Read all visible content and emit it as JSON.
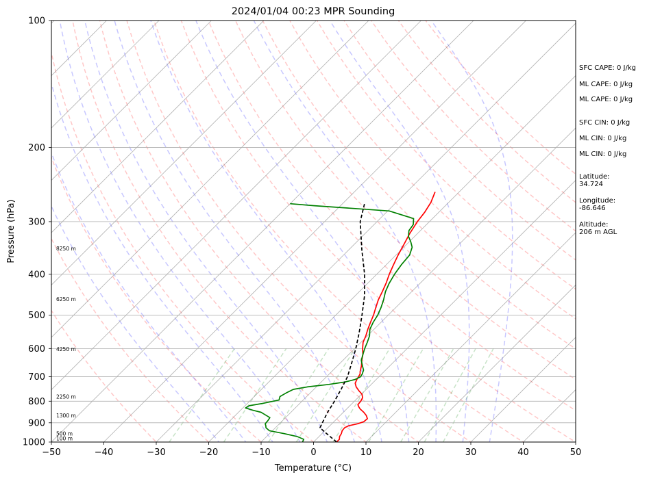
{
  "chart_data": {
    "type": "line",
    "chart_kind": "skew-T log-P sounding",
    "title": "2024/01/04 00:23 MPR Sounding",
    "xlabel": "Temperature (°C)",
    "ylabel": "Pressure (hPa)",
    "xlim": [
      -50,
      50
    ],
    "ylim": [
      1000,
      100
    ],
    "y_scale": "log",
    "x_ticks": [
      -50,
      -40,
      -30,
      -20,
      -10,
      0,
      10,
      20,
      30,
      40,
      50
    ],
    "x_tick_labels": [
      "−50",
      "−40",
      "−30",
      "−20",
      "−10",
      "0",
      "10",
      "20",
      "30",
      "40",
      "50"
    ],
    "y_ticks": [
      1000,
      900,
      800,
      700,
      600,
      500,
      400,
      300,
      200,
      100
    ],
    "y_tick_labels": [
      "1000",
      "900",
      "800",
      "700",
      "600",
      "500",
      "400",
      "300",
      "200",
      "100"
    ],
    "grid": true,
    "series": [
      {
        "role": "temperature",
        "color": "#ff0000",
        "points": [
          [
            1000,
            4.4
          ],
          [
            985,
            4.4
          ],
          [
            970,
            3.9
          ],
          [
            955,
            3.7
          ],
          [
            940,
            3.3
          ],
          [
            925,
            3.2
          ],
          [
            915,
            3.6
          ],
          [
            905,
            4.9
          ],
          [
            895,
            5.7
          ],
          [
            880,
            5.8
          ],
          [
            865,
            5.0
          ],
          [
            850,
            3.9
          ],
          [
            835,
            2.6
          ],
          [
            825,
            1.9
          ],
          [
            815,
            1.3
          ],
          [
            800,
            1.2
          ],
          [
            785,
            0.9
          ],
          [
            770,
            0.1
          ],
          [
            755,
            -1.2
          ],
          [
            740,
            -2.4
          ],
          [
            725,
            -3.3
          ],
          [
            710,
            -3.7
          ],
          [
            700,
            -3.9
          ],
          [
            690,
            -4.1
          ],
          [
            680,
            -4.6
          ],
          [
            660,
            -5.4
          ],
          [
            640,
            -6.4
          ],
          [
            620,
            -7.3
          ],
          [
            600,
            -8.5
          ],
          [
            580,
            -9.6
          ],
          [
            560,
            -10.3
          ],
          [
            540,
            -11.2
          ],
          [
            520,
            -12.0
          ],
          [
            500,
            -12.8
          ],
          [
            480,
            -13.8
          ],
          [
            460,
            -14.8
          ],
          [
            440,
            -15.6
          ],
          [
            420,
            -16.5
          ],
          [
            400,
            -17.6
          ],
          [
            380,
            -18.6
          ],
          [
            360,
            -19.6
          ],
          [
            340,
            -20.5
          ],
          [
            320,
            -21.5
          ],
          [
            300,
            -22.3
          ],
          [
            285,
            -22.7
          ],
          [
            270,
            -23.4
          ],
          [
            255,
            -24.6
          ]
        ]
      },
      {
        "role": "dewpoint",
        "color": "#008000",
        "points": [
          [
            1000,
            -2.1
          ],
          [
            985,
            -2.4
          ],
          [
            970,
            -4.2
          ],
          [
            955,
            -7.2
          ],
          [
            940,
            -10.6
          ],
          [
            925,
            -11.8
          ],
          [
            915,
            -12.2
          ],
          [
            905,
            -12.7
          ],
          [
            890,
            -12.8
          ],
          [
            875,
            -13.0
          ],
          [
            860,
            -14.6
          ],
          [
            850,
            -15.7
          ],
          [
            840,
            -17.7
          ],
          [
            830,
            -19.5
          ],
          [
            820,
            -19.2
          ],
          [
            810,
            -17.1
          ],
          [
            795,
            -14.6
          ],
          [
            780,
            -15.1
          ],
          [
            765,
            -14.6
          ],
          [
            750,
            -13.9
          ],
          [
            740,
            -11.7
          ],
          [
            730,
            -8.1
          ],
          [
            720,
            -5.4
          ],
          [
            710,
            -4.0
          ],
          [
            700,
            -3.5
          ],
          [
            690,
            -3.7
          ],
          [
            675,
            -4.2
          ],
          [
            660,
            -5.2
          ],
          [
            640,
            -6.5
          ],
          [
            620,
            -7.3
          ],
          [
            600,
            -8.1
          ],
          [
            580,
            -8.8
          ],
          [
            560,
            -9.6
          ],
          [
            540,
            -10.8
          ],
          [
            520,
            -11.5
          ],
          [
            500,
            -12.0
          ],
          [
            480,
            -12.8
          ],
          [
            460,
            -13.8
          ],
          [
            440,
            -15.0
          ],
          [
            420,
            -15.9
          ],
          [
            400,
            -16.6
          ],
          [
            380,
            -17.1
          ],
          [
            360,
            -17.4
          ],
          [
            345,
            -18.4
          ],
          [
            335,
            -19.7
          ],
          [
            325,
            -21.2
          ],
          [
            315,
            -22.2
          ],
          [
            305,
            -22.5
          ],
          [
            295,
            -23.6
          ],
          [
            283,
            -29.7
          ],
          [
            275,
            -45.0
          ],
          [
            272,
            -50.0
          ]
        ]
      },
      {
        "role": "parcel",
        "color": "#000000",
        "style": "dashed",
        "points": [
          [
            1000,
            4.4
          ],
          [
            950,
            0.5
          ],
          [
            925,
            -1.5
          ],
          [
            900,
            -2.0
          ],
          [
            850,
            -3.0
          ],
          [
            800,
            -3.8
          ],
          [
            750,
            -4.8
          ],
          [
            700,
            -6.0
          ],
          [
            650,
            -7.8
          ],
          [
            600,
            -9.8
          ],
          [
            550,
            -12.2
          ],
          [
            500,
            -15.0
          ],
          [
            450,
            -18.2
          ],
          [
            400,
            -22.3
          ],
          [
            350,
            -27.5
          ],
          [
            300,
            -33.2
          ],
          [
            270,
            -36.0
          ]
        ]
      }
    ],
    "height_labels": [
      {
        "p": 980,
        "label": "100 m"
      },
      {
        "p": 955,
        "label": "500 m"
      },
      {
        "p": 865,
        "label": "1300 m"
      },
      {
        "p": 780,
        "label": "2250 m"
      },
      {
        "p": 602,
        "label": "4250 m"
      },
      {
        "p": 458,
        "label": "6250 m"
      },
      {
        "p": 347,
        "label": "8250 m"
      }
    ],
    "annotations": [
      {
        "label": "SFC CAPE: 0 J/kg"
      },
      {
        "label": "ML CAPE: 0 J/kg"
      },
      {
        "label": "ML CAPE: 0 J/kg"
      },
      {
        "label": "SFC CIN: 0 J/kg"
      },
      {
        "label": "ML CIN: 0 J/kg"
      },
      {
        "label": "ML CIN: 0 J/kg"
      },
      {
        "label": "Latitude:",
        "value": "34.724"
      },
      {
        "label": "Longitude:",
        "value": "-86.646"
      },
      {
        "label": "Altitude:",
        "value": "206 m AGL"
      }
    ],
    "colors": {
      "temperature": "#ff0000",
      "dewpoint": "#008000",
      "parcel": "#000000",
      "isotherms": "#808080",
      "dry_adiabats": "#ff0000",
      "moist_adiabats": "#0000ff",
      "mixing_ratio": "#008000"
    }
  }
}
